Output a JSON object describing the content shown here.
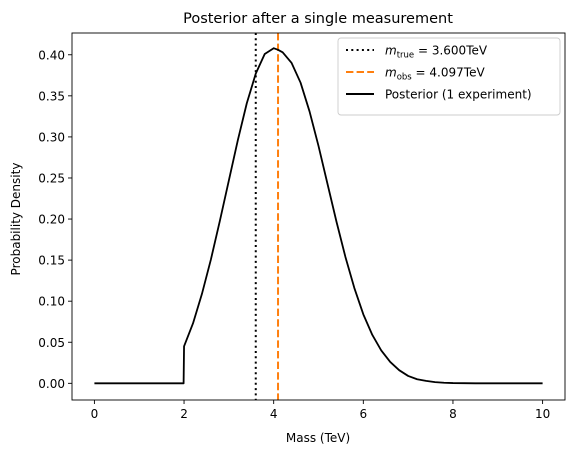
{
  "chart_data": {
    "type": "line",
    "title": "Posterior after a single measurement",
    "xlabel": "Mass (TeV)",
    "ylabel": "Probability Density",
    "xlim": [
      -0.5,
      10.5
    ],
    "ylim": [
      -0.0203,
      0.4265
    ],
    "xticks": [
      0,
      2,
      4,
      6,
      8,
      10
    ],
    "xtick_labels": [
      "0",
      "2",
      "4",
      "6",
      "8",
      "10"
    ],
    "yticks": [
      0.0,
      0.05,
      0.1,
      0.15,
      0.2,
      0.25,
      0.3,
      0.35,
      0.4
    ],
    "ytick_labels": [
      "0.00",
      "0.05",
      "0.10",
      "0.15",
      "0.20",
      "0.25",
      "0.30",
      "0.35",
      "0.40"
    ],
    "grid": false,
    "legend_position": "upper right",
    "vlines": [
      {
        "name_main": "m",
        "name_sub": "true",
        "value_text": " = 3.600TeV",
        "x": 3.6,
        "color": "#000000",
        "style": "dotted"
      },
      {
        "name_main": "m",
        "name_sub": "obs",
        "value_text": " = 4.097TeV",
        "x": 4.097,
        "color": "#ff7f0e",
        "style": "dashed"
      }
    ],
    "series": [
      {
        "name": "Posterior (1 experiment)",
        "color": "#000000",
        "x": [
          0,
          1,
          1.99,
          2.0,
          2.2,
          2.4,
          2.6,
          2.8,
          3.0,
          3.2,
          3.4,
          3.6,
          3.8,
          4.0,
          4.097,
          4.2,
          4.4,
          4.6,
          4.8,
          5.0,
          5.2,
          5.4,
          5.6,
          5.8,
          6.0,
          6.2,
          6.4,
          6.6,
          6.8,
          7.0,
          7.2,
          7.4,
          7.6,
          7.8,
          8.0,
          8.5,
          9.0,
          10.0
        ],
        "y": [
          0.0,
          0.0,
          0.0,
          0.045,
          0.073,
          0.109,
          0.151,
          0.198,
          0.247,
          0.296,
          0.341,
          0.377,
          0.401,
          0.408,
          0.406,
          0.403,
          0.39,
          0.366,
          0.331,
          0.289,
          0.243,
          0.197,
          0.154,
          0.116,
          0.084,
          0.059,
          0.04,
          0.026,
          0.016,
          0.009,
          0.005,
          0.003,
          0.0015,
          0.0007,
          0.0003,
          0.0,
          0.0,
          0.0
        ]
      }
    ]
  }
}
